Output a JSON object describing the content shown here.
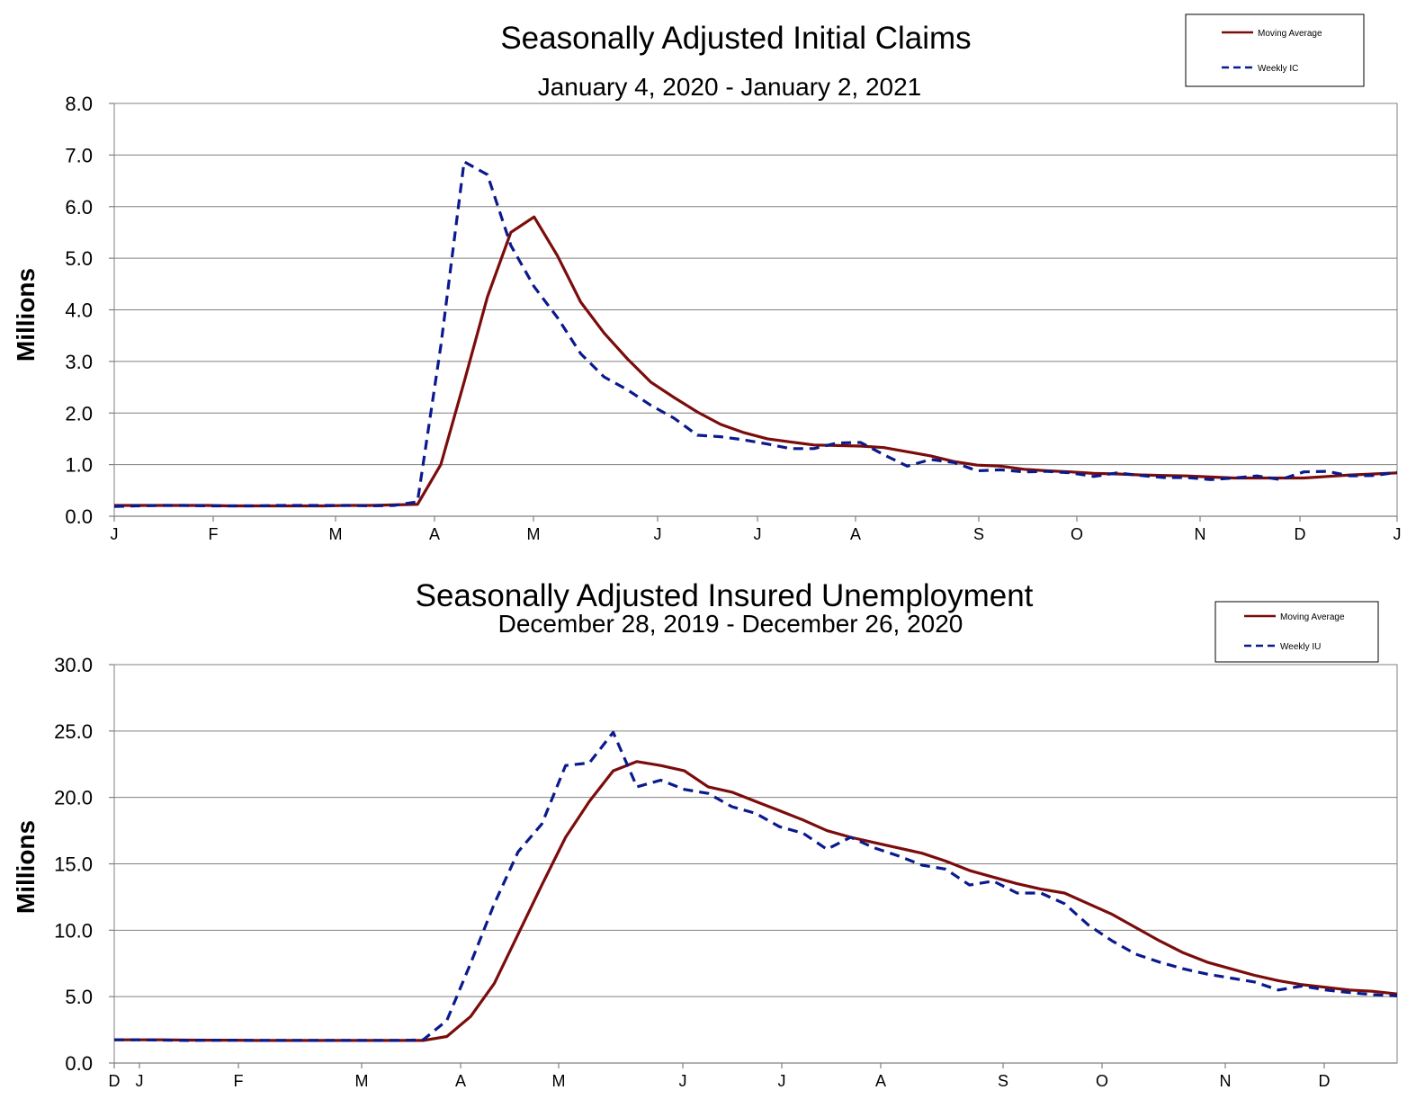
{
  "chart_data": [
    {
      "type": "line",
      "title": "Seasonally Adjusted Initial Claims",
      "subtitle": "January 4, 2020 - January 2, 2021",
      "ylabel": "Millions",
      "ylim": [
        0,
        8
      ],
      "yticks": [
        "0.0",
        "1.0",
        "2.0",
        "3.0",
        "4.0",
        "5.0",
        "6.0",
        "7.0",
        "8.0"
      ],
      "xtick_labels": [
        "J",
        "F",
        "M",
        "A",
        "M",
        "J",
        "J",
        "A",
        "S",
        "O",
        "N",
        "D",
        "J"
      ],
      "grid": true,
      "legend_position": "top-right",
      "series": [
        {
          "name": "Moving Average",
          "color": "#7b0c0c",
          "dash": "solid",
          "values": [
            0.21,
            0.21,
            0.21,
            0.21,
            0.21,
            0.2,
            0.2,
            0.2,
            0.2,
            0.2,
            0.21,
            0.21,
            0.22,
            0.23,
            1.0,
            2.6,
            4.25,
            5.5,
            5.8,
            5.05,
            4.15,
            3.55,
            3.05,
            2.6,
            2.3,
            2.02,
            1.78,
            1.62,
            1.5,
            1.44,
            1.38,
            1.37,
            1.36,
            1.33,
            1.25,
            1.17,
            1.06,
            0.99,
            0.97,
            0.91,
            0.88,
            0.86,
            0.83,
            0.82,
            0.8,
            0.79,
            0.78,
            0.76,
            0.74,
            0.74,
            0.74,
            0.74,
            0.77,
            0.8,
            0.82,
            0.84
          ]
        },
        {
          "name": "Weekly IC",
          "color": "#0a1a8c",
          "dash": "dashed",
          "values": [
            0.19,
            0.2,
            0.21,
            0.21,
            0.2,
            0.2,
            0.2,
            0.21,
            0.21,
            0.21,
            0.21,
            0.2,
            0.21,
            0.28,
            3.3,
            6.87,
            6.62,
            5.25,
            4.45,
            3.85,
            3.15,
            2.7,
            2.45,
            2.15,
            1.9,
            1.57,
            1.54,
            1.48,
            1.4,
            1.31,
            1.31,
            1.42,
            1.43,
            1.19,
            0.97,
            1.1,
            1.04,
            0.88,
            0.9,
            0.86,
            0.87,
            0.84,
            0.77,
            0.84,
            0.79,
            0.75,
            0.75,
            0.71,
            0.74,
            0.78,
            0.71,
            0.86,
            0.87,
            0.78,
            0.79,
            0.85
          ]
        }
      ]
    },
    {
      "type": "line",
      "title": "Seasonally Adjusted Insured Unemployment",
      "subtitle": "December 28, 2019 - December 26, 2020",
      "ylabel": "Millions",
      "ylim": [
        0,
        30
      ],
      "yticks": [
        "0.0",
        "5.0",
        "10.0",
        "15.0",
        "20.0",
        "25.0",
        "30.0"
      ],
      "xtick_labels": [
        "D",
        "J",
        "F",
        "M",
        "A",
        "M",
        "J",
        "J",
        "A",
        "S",
        "O",
        "N",
        "D"
      ],
      "grid": true,
      "legend_position": "top-right",
      "series": [
        {
          "name": "Moving Average",
          "color": "#7b0c0c",
          "dash": "solid",
          "values": [
            1.75,
            1.75,
            1.75,
            1.73,
            1.72,
            1.72,
            1.7,
            1.7,
            1.7,
            1.7,
            1.7,
            1.7,
            1.7,
            1.7,
            2.0,
            3.5,
            6.0,
            9.7,
            13.4,
            17.0,
            19.7,
            22.0,
            22.7,
            22.4,
            22.0,
            20.8,
            20.4,
            19.7,
            19.0,
            18.3,
            17.5,
            17.0,
            16.6,
            16.2,
            15.8,
            15.2,
            14.5,
            14.0,
            13.5,
            13.1,
            12.8,
            12.0,
            11.2,
            10.2,
            9.2,
            8.3,
            7.6,
            7.1,
            6.6,
            6.2,
            5.9,
            5.7,
            5.5,
            5.4,
            5.2
          ]
        },
        {
          "name": "Weekly IU",
          "color": "#0a1a8c",
          "dash": "dashed",
          "values": [
            1.75,
            1.75,
            1.73,
            1.7,
            1.72,
            1.72,
            1.7,
            1.7,
            1.7,
            1.7,
            1.7,
            1.7,
            1.7,
            1.75,
            3.2,
            7.5,
            12.0,
            15.9,
            18.0,
            22.4,
            22.6,
            24.9,
            20.8,
            21.3,
            20.6,
            20.3,
            19.3,
            18.8,
            17.8,
            17.3,
            16.1,
            17.0,
            16.2,
            15.6,
            14.9,
            14.6,
            13.4,
            13.7,
            12.8,
            12.8,
            12.0,
            10.4,
            9.2,
            8.2,
            7.6,
            7.1,
            6.7,
            6.4,
            6.1,
            5.5,
            5.8,
            5.5,
            5.3,
            5.15,
            5.05
          ]
        }
      ]
    }
  ]
}
